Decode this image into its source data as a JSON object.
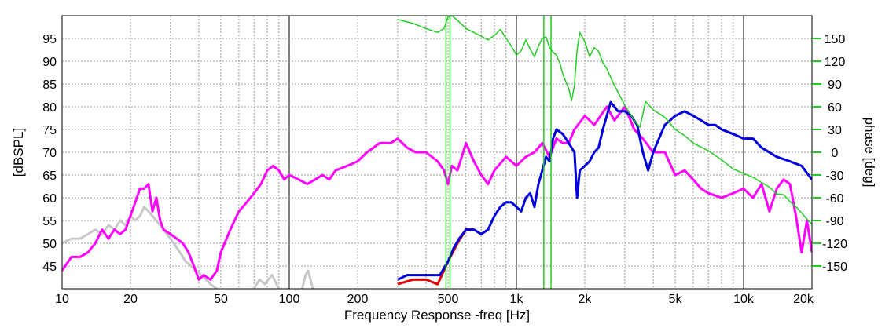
{
  "chart_data": {
    "type": "line",
    "xlabel": "Frequency Response -freq [Hz]",
    "ylabel": "[dBSPL]",
    "y2label": "phase [deg]",
    "xscale": "log",
    "xlim": [
      10,
      20000
    ],
    "ylim": [
      40,
      100
    ],
    "y2lim": [
      -180,
      180
    ],
    "x_ticks": [
      {
        "value": 10,
        "label": "10"
      },
      {
        "value": 20,
        "label": "20"
      },
      {
        "value": 50,
        "label": "50"
      },
      {
        "value": 100,
        "label": "100"
      },
      {
        "value": 200,
        "label": "200"
      },
      {
        "value": 500,
        "label": "500"
      },
      {
        "value": 1000,
        "label": "1k"
      },
      {
        "value": 2000,
        "label": "2k"
      },
      {
        "value": 5000,
        "label": "5k"
      },
      {
        "value": 10000,
        "label": "10k"
      },
      {
        "value": 20000,
        "label": "20k"
      }
    ],
    "y_ticks": [
      45,
      50,
      55,
      60,
      65,
      70,
      75,
      80,
      85,
      90,
      95
    ],
    "y2_ticks": [
      -150,
      -120,
      -90,
      -60,
      -30,
      0,
      30,
      60,
      90,
      120,
      150
    ],
    "series": [
      {
        "name": "gray",
        "color": "#c8c8c8",
        "axis": "left",
        "x": [
          10,
          11,
          12,
          13,
          14,
          15,
          16,
          17,
          18,
          19,
          20,
          21,
          22,
          23,
          24,
          25,
          27,
          29,
          31,
          33,
          35,
          37,
          39,
          41,
          43,
          45,
          48
        ],
        "y": [
          50,
          51,
          51,
          52,
          53,
          52,
          54,
          53,
          55,
          54,
          56,
          55,
          56,
          58,
          57,
          56,
          54,
          52,
          50,
          48,
          46,
          45,
          44,
          43,
          42,
          41,
          40
        ]
      },
      {
        "name": "gray-2",
        "color": "#c8c8c8",
        "axis": "left",
        "x": [
          70,
          74,
          78,
          84,
          90
        ],
        "y": [
          40,
          42,
          41,
          43,
          40
        ]
      },
      {
        "name": "gray-3",
        "color": "#c8c8c8",
        "axis": "left",
        "x": [
          114,
          118,
          121,
          124,
          127
        ],
        "y": [
          40,
          43,
          44,
          42,
          40
        ]
      },
      {
        "name": "magenta",
        "color": "#ff00ff",
        "axis": "left",
        "x": [
          10,
          11,
          12,
          13,
          14,
          15,
          16,
          17,
          18,
          19,
          20,
          21,
          22,
          23,
          24,
          25,
          26,
          27,
          28,
          30,
          32,
          34,
          36,
          38,
          40,
          42,
          45,
          48,
          50,
          55,
          60,
          65,
          70,
          75,
          80,
          85,
          90,
          95,
          100,
          110,
          120,
          130,
          140,
          150,
          160,
          180,
          200,
          220,
          250,
          280,
          300,
          330,
          360,
          400,
          450,
          480,
          500,
          520,
          550,
          600,
          650,
          700,
          750,
          800,
          900,
          1000,
          1100,
          1200,
          1300,
          1400,
          1500,
          1600,
          1700,
          1800,
          2000,
          2200,
          2500,
          2700,
          3000,
          3300,
          3600,
          4000,
          4500,
          5000,
          5500,
          6000,
          6500,
          7000,
          8000,
          9000,
          10000,
          11000,
          12000,
          13000,
          14000,
          15000,
          16000,
          17000,
          18000,
          19000,
          20000
        ],
        "y": [
          44,
          47,
          47,
          48,
          50,
          53,
          51,
          53,
          52,
          53,
          56,
          59,
          62,
          62,
          63,
          57,
          60,
          55,
          53,
          52,
          51,
          50,
          48,
          45,
          42,
          43,
          42,
          44,
          48,
          53,
          57,
          59,
          61,
          63,
          66,
          67,
          66,
          64,
          65,
          64,
          63,
          64,
          65,
          64,
          66,
          67,
          68,
          70,
          72,
          72,
          73,
          71,
          70,
          70,
          68,
          66,
          63,
          67,
          66,
          72,
          68,
          65,
          63,
          66,
          69,
          67,
          69,
          70,
          72,
          69,
          73,
          72,
          72,
          75,
          78,
          76,
          80,
          77,
          80,
          75,
          73,
          70,
          70,
          65,
          66,
          64,
          62,
          61,
          60,
          61,
          62,
          60,
          63,
          57,
          62,
          64,
          63,
          56,
          48,
          55,
          48
        ]
      },
      {
        "name": "red",
        "color": "#e00000",
        "axis": "left",
        "x": [
          300,
          350,
          400,
          450,
          500,
          550,
          600,
          650,
          700
        ],
        "y": [
          41,
          42,
          42,
          41,
          46,
          50,
          53,
          53,
          52
        ]
      },
      {
        "name": "blue",
        "color": "#0000dd",
        "axis": "left",
        "x": [
          300,
          330,
          360,
          400,
          430,
          460,
          500,
          530,
          560,
          600,
          650,
          700,
          750,
          800,
          850,
          900,
          950,
          1000,
          1050,
          1100,
          1150,
          1200,
          1250,
          1300,
          1350,
          1400,
          1450,
          1500,
          1600,
          1700,
          1800,
          1850,
          1900,
          2000,
          2100,
          2200,
          2300,
          2400,
          2500,
          2600,
          2700,
          2800,
          3000,
          3200,
          3400,
          3600,
          3800,
          4000,
          4500,
          5000,
          5500,
          6000,
          6500,
          7000,
          7500,
          8000,
          9000,
          10000,
          11000,
          12000,
          14000,
          16000,
          18000,
          20000
        ],
        "y": [
          42,
          43,
          43,
          43,
          43,
          43,
          46,
          49,
          51,
          53,
          53,
          52,
          53,
          56,
          58,
          59,
          59,
          58,
          57,
          60,
          61,
          58,
          63,
          66,
          69,
          68,
          73,
          75,
          74,
          72,
          70,
          60,
          66,
          67,
          68,
          70,
          71,
          75,
          78,
          81,
          80,
          79,
          79,
          78,
          76,
          70,
          66,
          70,
          76,
          78,
          79,
          78,
          77,
          76,
          76,
          75,
          74,
          73,
          73,
          71,
          69,
          68,
          67,
          64
        ]
      },
      {
        "name": "green",
        "color": "#22cc22",
        "axis": "right",
        "x": [
          300,
          350,
          400,
          450,
          480,
          500,
          520,
          550,
          600,
          650,
          700,
          750,
          800,
          850,
          900,
          950,
          1000,
          1050,
          1100,
          1150,
          1200,
          1250,
          1300,
          1350,
          1400,
          1450,
          1500,
          1550,
          1600,
          1650,
          1700,
          1750,
          1800,
          1850,
          1900,
          2000,
          2100,
          2200,
          2300,
          2400,
          2500,
          2700,
          3000,
          3300,
          3500,
          3700,
          4000,
          4500,
          5000,
          5500,
          6000,
          7000,
          8000,
          9000,
          10000,
          11000,
          12000,
          13000,
          14000,
          15000,
          16000,
          17000,
          18000,
          19000,
          20000
        ],
        "y": [
          175,
          170,
          163,
          158,
          163,
          178,
          180,
          174,
          163,
          158,
          153,
          148,
          154,
          162,
          150,
          140,
          128,
          134,
          148,
          136,
          126,
          140,
          150,
          152,
          138,
          132,
          128,
          118,
          103,
          93,
          84,
          68,
          88,
          135,
          158,
          146,
          126,
          138,
          133,
          118,
          110,
          88,
          62,
          42,
          33,
          67,
          56,
          46,
          30,
          22,
          12,
          2,
          -10,
          -22,
          -28,
          -33,
          -40,
          -46,
          -55,
          -56,
          -65,
          -72,
          -80,
          -88,
          -95
        ]
      }
    ]
  }
}
